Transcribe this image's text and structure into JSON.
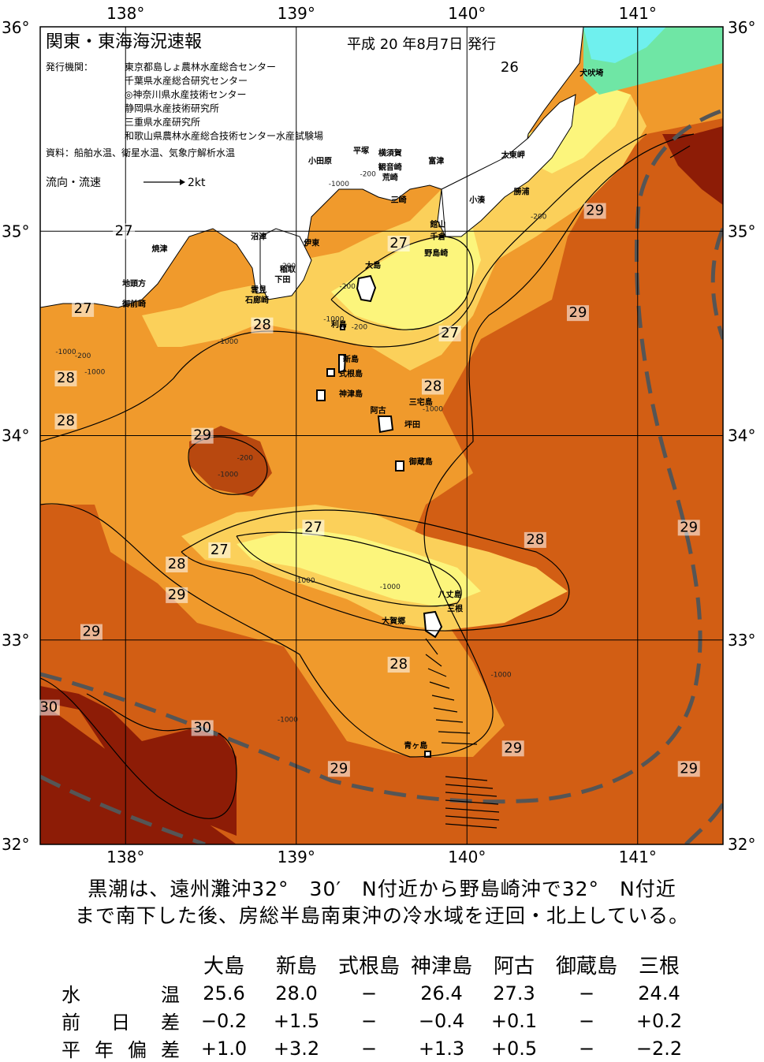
{
  "map": {
    "title": "関東・東海海況速報",
    "issue_date": "平成 20 年8月7日 発行",
    "agencies_label": "発行機関：",
    "agencies": [
      "東京都島しょ農林水産総合センター",
      "千葉県水産総合研究センター",
      "◎神奈川県水産技術センター",
      "静岡県水産技術研究所",
      "三重県水産研究所",
      "和歌山県農林水産総合技術センター水産試験場"
    ],
    "sources": "資料：船舶水温、衛星水温、気象庁解析水温",
    "flow_label": "流向・流速",
    "flow_scale": "2kt",
    "lon_labels": [
      "138°",
      "139°",
      "140°",
      "141°"
    ],
    "lat_labels": [
      "36°",
      "35°",
      "34°",
      "33°",
      "32°"
    ],
    "isotherm_labels": [
      {
        "t": "26",
        "lon": 140.25,
        "lat": 35.78
      },
      {
        "t": "27",
        "lon": 137.99,
        "lon_note": "",
        "lat": 34.98
      },
      {
        "t": "27",
        "lon": 139.6,
        "lat": 34.92
      },
      {
        "t": "27",
        "lon": 137.75,
        "lat": 34.6
      },
      {
        "t": "27",
        "lon": 139.9,
        "lat": 34.48
      },
      {
        "t": "27",
        "lon": 139.1,
        "lat": 33.53
      },
      {
        "t": "27",
        "lon": 138.55,
        "lat": 33.42
      },
      {
        "t": "28",
        "lon": 138.8,
        "lat": 34.52
      },
      {
        "t": "28",
        "lon": 137.65,
        "lat": 34.26
      },
      {
        "t": "28",
        "lon": 137.65,
        "lat": 34.05
      },
      {
        "t": "28",
        "lon": 139.8,
        "lat": 34.22
      },
      {
        "t": "28",
        "lon": 138.3,
        "lat": 33.35
      },
      {
        "t": "28",
        "lon": 140.4,
        "lat": 33.47
      },
      {
        "t": "28",
        "lon": 139.6,
        "lat": 32.86
      },
      {
        "t": "29",
        "lon": 138.45,
        "lat": 33.98
      },
      {
        "t": "29",
        "lon": 138.3,
        "lat": 33.2
      },
      {
        "t": "29",
        "lon": 137.8,
        "lat": 33.02
      },
      {
        "t": "29",
        "lon": 140.75,
        "lat": 35.08
      },
      {
        "t": "29",
        "lon": 140.65,
        "lat": 34.58
      },
      {
        "t": "29",
        "lon": 141.3,
        "lat": 33.53
      },
      {
        "t": "29",
        "lon": 140.27,
        "lat": 32.45
      },
      {
        "t": "29",
        "lon": 141.3,
        "lat": 32.35
      },
      {
        "t": "29",
        "lon": 139.25,
        "lat": 32.35
      },
      {
        "t": "30",
        "lon": 137.55,
        "lat": 32.65
      },
      {
        "t": "30",
        "lon": 138.45,
        "lat": 32.55
      }
    ],
    "depth_labels": [
      {
        "t": "-1000",
        "lon": 139.25,
        "lat": 35.22
      },
      {
        "t": "-200",
        "lon": 139.42,
        "lat": 35.27
      },
      {
        "t": "-200",
        "lon": 138.95,
        "lat": 34.82
      },
      {
        "t": "-200",
        "lon": 139.3,
        "lat": 34.72
      },
      {
        "t": "-200",
        "lon": 139.37,
        "lat": 34.52
      },
      {
        "t": "-1000",
        "lon": 139.22,
        "lat": 34.56
      },
      {
        "t": "-1000",
        "lon": 137.65,
        "lat": 34.4
      },
      {
        "t": "-200",
        "lon": 137.75,
        "lat": 34.38
      },
      {
        "t": "-1000",
        "lon": 137.82,
        "lat": 34.3
      },
      {
        "t": "-1000",
        "lon": 138.6,
        "lat": 34.45
      },
      {
        "t": "-200",
        "lon": 138.7,
        "lat": 33.88
      },
      {
        "t": "-1000",
        "lon": 138.6,
        "lat": 33.8
      },
      {
        "t": "-1000",
        "lon": 139.8,
        "lat": 34.12
      },
      {
        "t": "-200",
        "lon": 140.42,
        "lat": 35.06
      },
      {
        "t": "-1000",
        "lon": 139.05,
        "lat": 33.28
      },
      {
        "t": "-1000",
        "lon": 139.55,
        "lat": 33.25
      },
      {
        "t": "-1000",
        "lon": 140.2,
        "lat": 32.82
      },
      {
        "t": "-1000",
        "lon": 138.95,
        "lat": 32.6
      }
    ],
    "place_labels": [
      {
        "t": "犬吠埼",
        "lon": 140.73,
        "lat": 35.76
      },
      {
        "t": "太東岬",
        "lon": 140.27,
        "lat": 35.36
      },
      {
        "t": "勝浦",
        "lon": 140.32,
        "lat": 35.18
      },
      {
        "t": "小湊",
        "lon": 140.06,
        "lat": 35.14
      },
      {
        "t": "富津",
        "lon": 139.82,
        "lat": 35.33
      },
      {
        "t": "館山",
        "lon": 139.83,
        "lat": 35.02
      },
      {
        "t": "千倉",
        "lon": 139.83,
        "lat": 34.96
      },
      {
        "t": "野島崎",
        "lon": 139.82,
        "lat": 34.88
      },
      {
        "t": "横須賀",
        "lon": 139.55,
        "lat": 35.37
      },
      {
        "t": "観音崎",
        "lon": 139.55,
        "lat": 35.3
      },
      {
        "t": "荒崎",
        "lon": 139.55,
        "lat": 35.25
      },
      {
        "t": "三崎",
        "lon": 139.6,
        "lat": 35.14
      },
      {
        "t": "平塚",
        "lon": 139.38,
        "lat": 35.38
      },
      {
        "t": "小田原",
        "lon": 139.14,
        "lat": 35.33
      },
      {
        "t": "沼津",
        "lon": 138.78,
        "lat": 34.96
      },
      {
        "t": "伊東",
        "lon": 139.09,
        "lat": 34.93
      },
      {
        "t": "稲取",
        "lon": 138.95,
        "lat": 34.8
      },
      {
        "t": "下田",
        "lon": 138.92,
        "lat": 34.75
      },
      {
        "t": "雲見",
        "lon": 138.78,
        "lat": 34.7
      },
      {
        "t": "石廊崎",
        "lon": 138.77,
        "lat": 34.65
      },
      {
        "t": "大島",
        "lon": 139.45,
        "lat": 34.82
      },
      {
        "t": "利島",
        "lon": 139.25,
        "lat": 34.53
      },
      {
        "t": "新島",
        "lon": 139.32,
        "lat": 34.36
      },
      {
        "t": "式根島",
        "lon": 139.32,
        "lat": 34.29
      },
      {
        "t": "神津島",
        "lon": 139.32,
        "lat": 34.19
      },
      {
        "t": "三宅島",
        "lon": 139.73,
        "lat": 34.15
      },
      {
        "t": "阿古",
        "lon": 139.48,
        "lat": 34.11
      },
      {
        "t": "坪田",
        "lon": 139.68,
        "lat": 34.04
      },
      {
        "t": "御蔵島",
        "lon": 139.73,
        "lat": 33.86
      },
      {
        "t": "八丈島",
        "lon": 139.9,
        "lat": 33.21
      },
      {
        "t": "三根",
        "lon": 139.93,
        "lat": 33.14
      },
      {
        "t": "大賀郷",
        "lon": 139.57,
        "lat": 33.08
      },
      {
        "t": "青ヶ島",
        "lon": 139.7,
        "lat": 32.47
      },
      {
        "t": "焼津",
        "lon": 138.2,
        "lat": 34.9
      },
      {
        "t": "地頭方",
        "lon": 138.05,
        "lat": 34.73
      },
      {
        "t": "御前崎",
        "lon": 138.05,
        "lat": 34.63
      }
    ]
  },
  "caption": {
    "line1": "黒潮は、遠州灘沖32°　30′　N付近から野島崎沖で32°　N付近",
    "line2": "まで南下した後、房総半島南東沖の冷水域を迂回・北上している。"
  },
  "stats": {
    "columns": [
      "大島",
      "新島",
      "式根島",
      "神津島",
      "阿古",
      "御蔵島",
      "三根"
    ],
    "rows": [
      {
        "label": "水温",
        "values": [
          "25.6",
          "28.0",
          "−",
          "26.4",
          "27.3",
          "−",
          "24.4"
        ]
      },
      {
        "label": "前日差",
        "values": [
          "−0.2",
          "+1.5",
          "−",
          "−0.4",
          "+0.1",
          "−",
          "+0.2"
        ]
      },
      {
        "label": "平年偏差",
        "values": [
          "+1.0",
          "+3.2",
          "−",
          "+1.3",
          "+0.5",
          "−",
          "−2.2"
        ]
      }
    ]
  },
  "colors": {
    "t26": "#fcf57c",
    "t27": "#fbd05a",
    "t28": "#f09a2c",
    "t29": "#d25e14",
    "t30": "#8d1c06",
    "land": "#ffffff",
    "cold_sea": "#6fe6a5",
    "kuroshio_axis": "#555555"
  }
}
